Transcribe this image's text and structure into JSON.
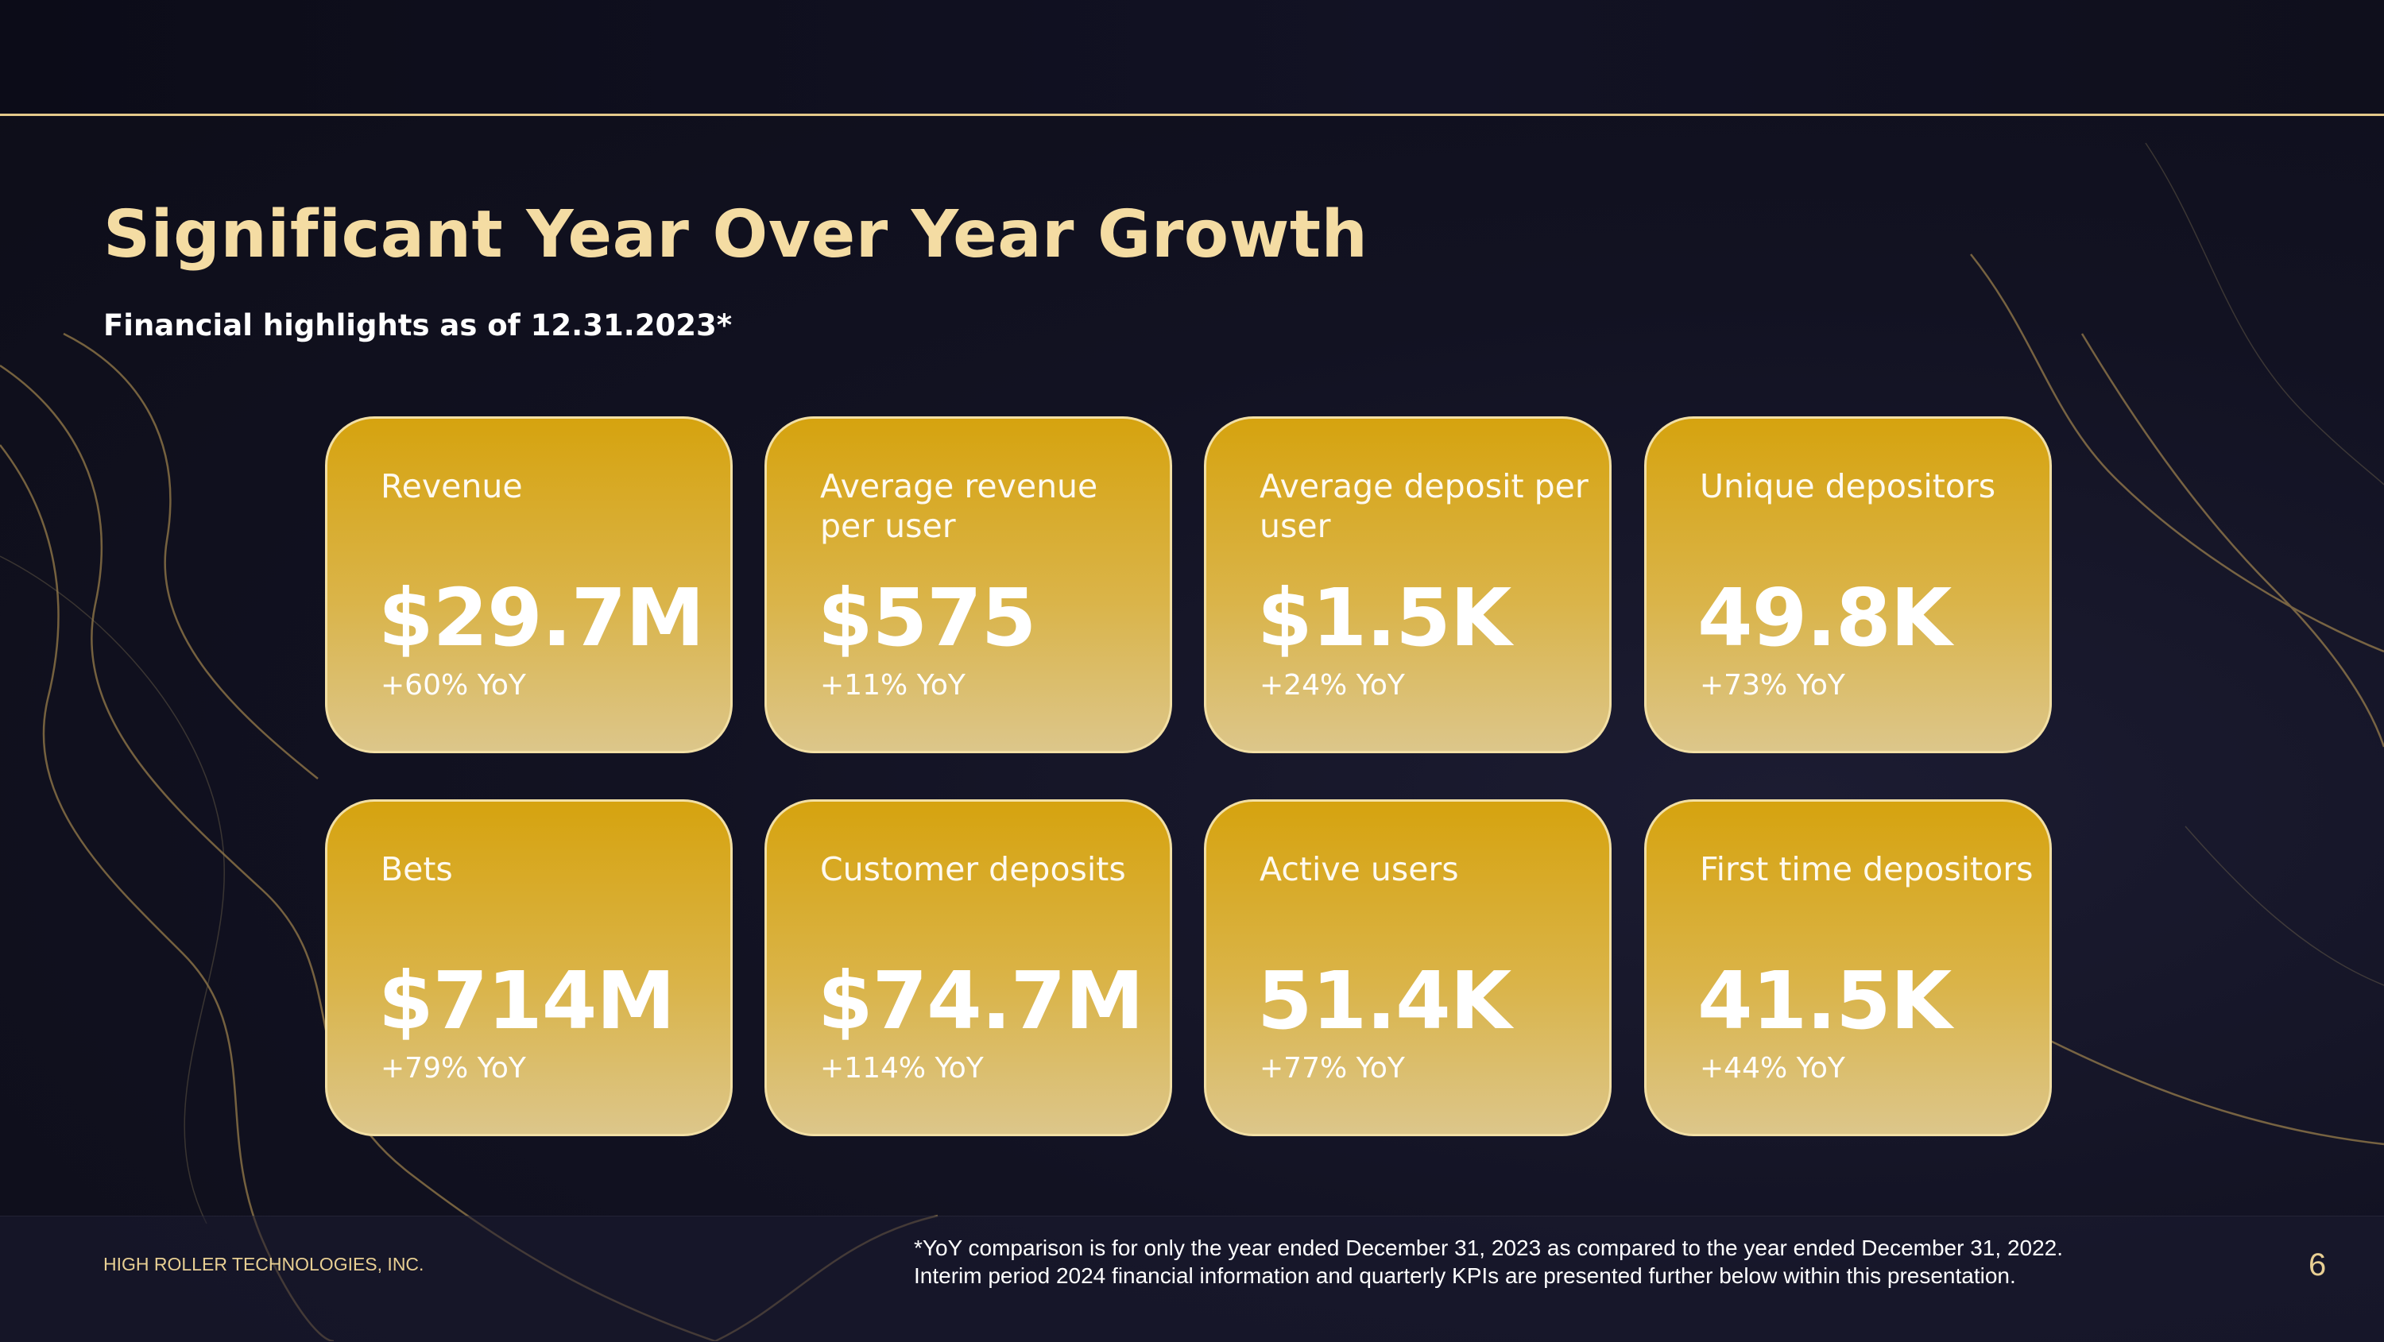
{
  "slide": {
    "title": "Significant Year Over Year Growth",
    "subtitle": "Financial highlights as of 12.31.2023*"
  },
  "metrics": [
    {
      "label": "Revenue",
      "value": "$29.7M",
      "yoy": "+60% YoY"
    },
    {
      "label": "Average revenue per user",
      "value": "$575",
      "yoy": "+11% YoY"
    },
    {
      "label": "Average deposit per user",
      "value": "$1.5K",
      "yoy": "+24% YoY"
    },
    {
      "label": "Unique depositors",
      "value": "49.8K",
      "yoy": "+73% YoY"
    },
    {
      "label": "Bets",
      "value": "$714M",
      "yoy": "+79% YoY"
    },
    {
      "label": "Customer deposits",
      "value": "$74.7M",
      "yoy": "+114% YoY"
    },
    {
      "label": "Active users",
      "value": "51.4K",
      "yoy": "+77% YoY"
    },
    {
      "label": "First time depositors",
      "value": "41.5K",
      "yoy": "+44% YoY"
    }
  ],
  "footer": {
    "company": "HIGH ROLLER TECHNOLOGIES, INC.",
    "footnote_line1": "*YoY comparison is for only the year ended December 31, 2023 as compared to the year ended December 31, 2022.",
    "footnote_line2": "Interim period 2024 financial information and quarterly KPIs are presented further below within this presentation.",
    "page_number": "6"
  },
  "colors": {
    "background": "#11111f",
    "title": "#f4dca3",
    "card_gold": "#d6a30f",
    "card_light": "#dcc68a",
    "card_border": "#f2dfa4"
  }
}
